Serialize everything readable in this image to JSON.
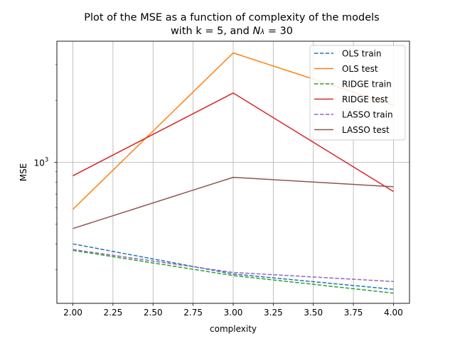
{
  "chart_data": {
    "type": "line",
    "title_line1": "Plot of the MSE as a function of complexity of the models",
    "title_line2_prefix": "with k = 5, and ",
    "title_symbol_main": "N",
    "title_symbol_sub": "λ",
    "title_line2_suffix": " = 30",
    "xlabel": "complexity",
    "ylabel": "MSE",
    "xlim": [
      1.9,
      4.1
    ],
    "ylim": [
      205,
      3900
    ],
    "yscale": "log",
    "grid": true,
    "legend_position": "top-right",
    "x_ticks": [
      2.0,
      2.25,
      2.5,
      2.75,
      3.0,
      3.25,
      3.5,
      3.75,
      4.0
    ],
    "x_tick_labels": [
      "2.00",
      "2.25",
      "2.50",
      "2.75",
      "3.00",
      "3.25",
      "3.50",
      "3.75",
      "4.00"
    ],
    "y_tick_labels": [
      {
        "base": "10",
        "exp": "3",
        "value": 1000
      }
    ],
    "x": [
      2,
      3,
      4
    ],
    "series": [
      {
        "name": "OLS train",
        "values": [
          400,
          285,
          240
        ],
        "color": "#1f77b4",
        "dashed": true
      },
      {
        "name": "OLS test",
        "values": [
          590,
          3420,
          1900
        ],
        "color": "#ff7f0e",
        "dashed": false
      },
      {
        "name": "RIDGE train",
        "values": [
          372,
          280,
          230
        ],
        "color": "#2ca02c",
        "dashed": true
      },
      {
        "name": "RIDGE test",
        "values": [
          860,
          2180,
          720
        ],
        "color": "#d62728",
        "dashed": false
      },
      {
        "name": "LASSO train",
        "values": [
          375,
          290,
          262
        ],
        "color": "#9467bd",
        "dashed": true
      },
      {
        "name": "LASSO test",
        "values": [
          475,
          845,
          760
        ],
        "color": "#8c564b",
        "dashed": false
      }
    ]
  }
}
